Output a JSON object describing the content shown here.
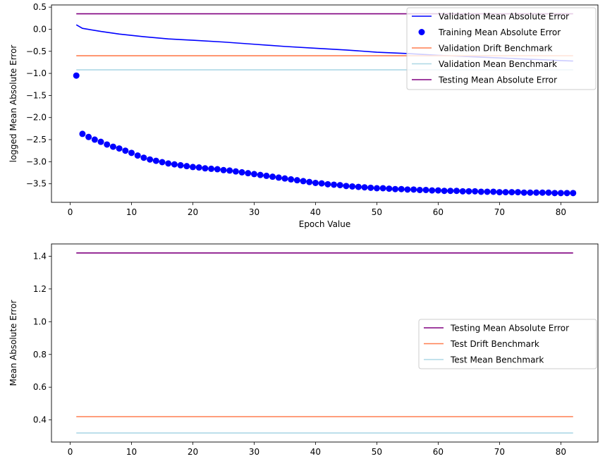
{
  "chart_data": [
    {
      "type": "line",
      "xlabel": "Epoch Value",
      "ylabel": "logged Mean Absolute Error",
      "xlim": [
        -3.05,
        86.05
      ],
      "ylim": [
        -3.92,
        0.55
      ],
      "xticks": [
        0,
        10,
        20,
        30,
        40,
        50,
        60,
        70,
        80
      ],
      "yticks": [
        0.5,
        0.0,
        -0.5,
        -1.0,
        -1.5,
        -2.0,
        -2.5,
        -3.0,
        -3.5
      ],
      "ytick_labels": [
        "0.5",
        "0.0",
        "−0.5",
        "−1.0",
        "−1.5",
        "−2.0",
        "−2.5",
        "−3.0",
        "−3.5"
      ],
      "legend_position": "top-right",
      "series": [
        {
          "name": "Validation Mean Absolute Error",
          "style": "line",
          "color": "#0000ff",
          "x": [
            1,
            2,
            5,
            8,
            12,
            16,
            20,
            25,
            30,
            35,
            40,
            45,
            50,
            55,
            60,
            65,
            70,
            75,
            80,
            82
          ],
          "y": [
            0.1,
            0.02,
            -0.05,
            -0.11,
            -0.17,
            -0.22,
            -0.25,
            -0.29,
            -0.34,
            -0.39,
            -0.43,
            -0.47,
            -0.52,
            -0.55,
            -0.59,
            -0.62,
            -0.65,
            -0.68,
            -0.71,
            -0.72
          ]
        },
        {
          "name": "Training Mean Absolute Error",
          "style": "points",
          "color": "#0000ff",
          "x": [
            1,
            2,
            3,
            4,
            5,
            6,
            7,
            8,
            9,
            10,
            11,
            12,
            13,
            14,
            15,
            16,
            17,
            18,
            19,
            20,
            21,
            22,
            23,
            24,
            25,
            26,
            27,
            28,
            29,
            30,
            31,
            32,
            33,
            34,
            35,
            36,
            37,
            38,
            39,
            40,
            41,
            42,
            43,
            44,
            45,
            46,
            47,
            48,
            49,
            50,
            51,
            52,
            53,
            54,
            55,
            56,
            57,
            58,
            59,
            60,
            61,
            62,
            63,
            64,
            65,
            66,
            67,
            68,
            69,
            70,
            71,
            72,
            73,
            74,
            75,
            76,
            77,
            78,
            79,
            80,
            81,
            82
          ],
          "y": [
            -1.05,
            -2.37,
            -2.44,
            -2.5,
            -2.55,
            -2.61,
            -2.66,
            -2.7,
            -2.75,
            -2.8,
            -2.86,
            -2.91,
            -2.95,
            -2.98,
            -3.01,
            -3.04,
            -3.06,
            -3.08,
            -3.1,
            -3.12,
            -3.13,
            -3.15,
            -3.16,
            -3.17,
            -3.19,
            -3.2,
            -3.22,
            -3.24,
            -3.26,
            -3.28,
            -3.3,
            -3.32,
            -3.34,
            -3.36,
            -3.38,
            -3.4,
            -3.42,
            -3.44,
            -3.46,
            -3.48,
            -3.49,
            -3.51,
            -3.52,
            -3.53,
            -3.55,
            -3.56,
            -3.57,
            -3.58,
            -3.59,
            -3.6,
            -3.6,
            -3.61,
            -3.62,
            -3.62,
            -3.63,
            -3.63,
            -3.64,
            -3.64,
            -3.65,
            -3.65,
            -3.66,
            -3.66,
            -3.66,
            -3.67,
            -3.67,
            -3.67,
            -3.68,
            -3.68,
            -3.68,
            -3.69,
            -3.69,
            -3.69,
            -3.69,
            -3.7,
            -3.7,
            -3.7,
            -3.7,
            -3.7,
            -3.71,
            -3.71,
            -3.71,
            -3.71
          ]
        },
        {
          "name": "Validation Drift Benchmark",
          "style": "line",
          "color": "#ff7f50",
          "x": [
            1,
            82
          ],
          "y": [
            -0.6,
            -0.6
          ]
        },
        {
          "name": "Validation Mean Benchmark",
          "style": "line",
          "color": "#add8e6",
          "x": [
            1,
            82
          ],
          "y": [
            -0.92,
            -0.92
          ]
        },
        {
          "name": "Testing Mean Absolute Error",
          "style": "line",
          "color": "#800080",
          "x": [
            1,
            82
          ],
          "y": [
            0.35,
            0.35
          ]
        }
      ]
    },
    {
      "type": "line",
      "xlabel": "",
      "ylabel": "Mean Absolute Error",
      "xlim": [
        -3.05,
        86.05
      ],
      "ylim": [
        0.265,
        1.475
      ],
      "xticks": [
        0,
        10,
        20,
        30,
        40,
        50,
        60,
        70,
        80
      ],
      "yticks": [
        1.4,
        1.2,
        1.0,
        0.8,
        0.6,
        0.4
      ],
      "ytick_labels": [
        "1.4",
        "1.2",
        "1.0",
        "0.8",
        "0.6",
        "0.4"
      ],
      "legend_position": "center-right",
      "series": [
        {
          "name": "Testing Mean Absolute Error",
          "style": "line",
          "color": "#800080",
          "x": [
            1,
            82
          ],
          "y": [
            1.42,
            1.42
          ]
        },
        {
          "name": "Test Drift Benchmark",
          "style": "line",
          "color": "#ff7f50",
          "x": [
            1,
            82
          ],
          "y": [
            0.42,
            0.42
          ]
        },
        {
          "name": "Test Mean Benchmark",
          "style": "line",
          "color": "#add8e6",
          "x": [
            1,
            82
          ],
          "y": [
            0.32,
            0.32
          ]
        }
      ]
    }
  ]
}
